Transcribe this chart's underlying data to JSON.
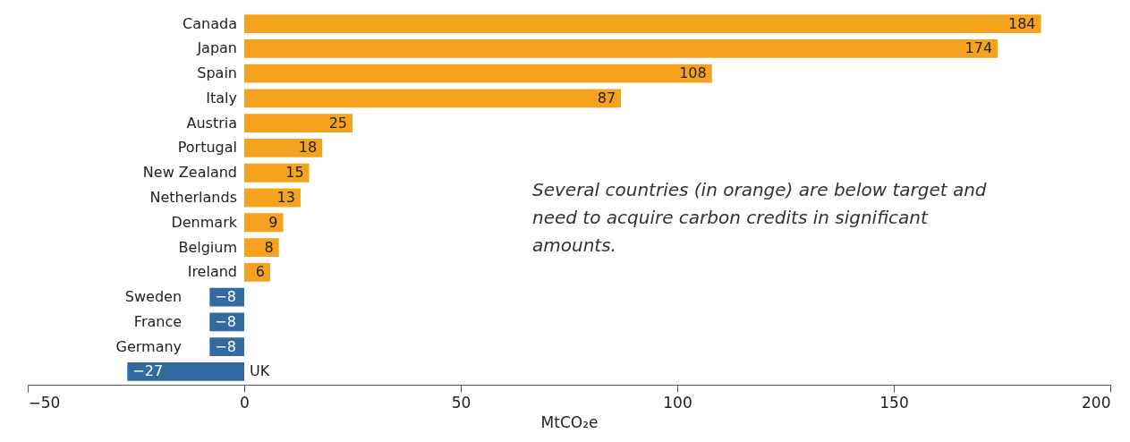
{
  "chart_data": {
    "type": "bar",
    "orientation": "horizontal",
    "xlabel": "MtCO₂e",
    "categories": [
      "Canada",
      "Japan",
      "Spain",
      "Italy",
      "Austria",
      "Portugal",
      "New Zealand",
      "Netherlands",
      "Denmark",
      "Belgium",
      "Ireland",
      "Sweden",
      "France",
      "Germany",
      "UK"
    ],
    "values": [
      184,
      174,
      108,
      87,
      25,
      18,
      15,
      13,
      9,
      8,
      6,
      -8,
      -8,
      -8,
      -27
    ],
    "colors": [
      "#f5a31f",
      "#f5a31f",
      "#f5a31f",
      "#f5a31f",
      "#f5a31f",
      "#f5a31f",
      "#f5a31f",
      "#f5a31f",
      "#f5a31f",
      "#f5a31f",
      "#f5a31f",
      "#336a9f",
      "#336a9f",
      "#336a9f",
      "#336a9f"
    ],
    "xlim": [
      -50,
      200
    ],
    "xticks": [
      -50,
      0,
      50,
      100,
      150,
      200
    ],
    "grid": false,
    "data_labels": true,
    "annotations": [
      "Several countries (in orange) are below target and need to acquire carbon credits in significant amounts."
    ]
  }
}
